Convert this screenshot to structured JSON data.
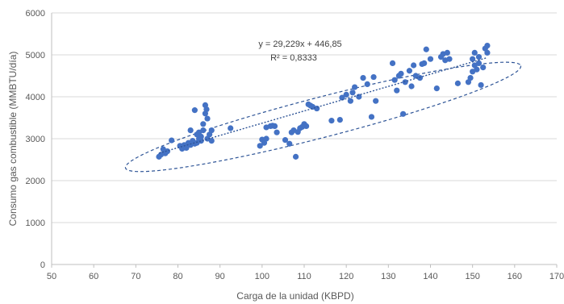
{
  "chart_data": {
    "type": "scatter",
    "title": "",
    "xlabel": "Carga de la unidad (KBPD)",
    "ylabel": "Consumo gas combustible (MMBTU/día)",
    "xlim": [
      50,
      170
    ],
    "ylim": [
      0,
      6000
    ],
    "x_ticks": [
      50,
      60,
      70,
      80,
      90,
      100,
      110,
      120,
      130,
      140,
      150,
      160,
      170
    ],
    "y_ticks": [
      0,
      1000,
      2000,
      3000,
      4000,
      5000,
      6000
    ],
    "x_tick_labels": [
      "50",
      "60",
      "70",
      "80",
      "90",
      "100",
      "110",
      "120",
      "130",
      "140",
      "150",
      "160",
      "170"
    ],
    "y_tick_labels": [
      "0",
      "1000",
      "2000",
      "3000",
      "4000",
      "5000",
      "6000"
    ],
    "grid": "horizontal",
    "marker_color": "#4472c4",
    "trendline": {
      "type": "linear",
      "slope": 29.229,
      "intercept": 446.85,
      "x_range": [
        75.5,
        153.5
      ],
      "equation": "y = 29,229x + 446,85",
      "r_squared": "R² = 0,8333"
    },
    "annotation_ellipse": {
      "center": [
        114.5,
        3520
      ],
      "rx": 48.5,
      "ry": 480,
      "angle_deg": -14.5,
      "style": "dashed"
    },
    "series": [
      {
        "points": [
          [
            75.5,
            2570
          ],
          [
            76.0,
            2620
          ],
          [
            76.5,
            2750
          ],
          [
            77.0,
            2650
          ],
          [
            77.5,
            2700
          ],
          [
            78.5,
            2960
          ],
          [
            80.5,
            2830
          ],
          [
            81.0,
            2760
          ],
          [
            81.5,
            2850
          ],
          [
            82.0,
            2780
          ],
          [
            82.5,
            2900
          ],
          [
            83.0,
            2850
          ],
          [
            83.0,
            3200
          ],
          [
            83.5,
            2950
          ],
          [
            84.0,
            3680
          ],
          [
            84.0,
            2880
          ],
          [
            84.5,
            3100
          ],
          [
            84.5,
            2900
          ],
          [
            85.0,
            3150
          ],
          [
            85.0,
            3000
          ],
          [
            85.5,
            3050
          ],
          [
            85.5,
            2950
          ],
          [
            86.0,
            3200
          ],
          [
            86.0,
            3350
          ],
          [
            86.5,
            3800
          ],
          [
            86.5,
            3600
          ],
          [
            86.8,
            3700
          ],
          [
            87.0,
            3480
          ],
          [
            87.0,
            3000
          ],
          [
            87.5,
            3100
          ],
          [
            88.0,
            3200
          ],
          [
            88.0,
            2950
          ],
          [
            92.5,
            3250
          ],
          [
            99.5,
            2830
          ],
          [
            100.0,
            2980
          ],
          [
            100.5,
            2900
          ],
          [
            101.0,
            3270
          ],
          [
            101.0,
            3000
          ],
          [
            102.0,
            3300
          ],
          [
            102.5,
            3310
          ],
          [
            103.0,
            3300
          ],
          [
            103.5,
            3150
          ],
          [
            105.5,
            2970
          ],
          [
            106.5,
            2880
          ],
          [
            107.0,
            3150
          ],
          [
            107.5,
            3200
          ],
          [
            108.0,
            2570
          ],
          [
            108.5,
            3160
          ],
          [
            109.0,
            3250
          ],
          [
            109.5,
            3280
          ],
          [
            110.0,
            3350
          ],
          [
            110.5,
            3300
          ],
          [
            111.0,
            3820
          ],
          [
            111.5,
            3790
          ],
          [
            112.0,
            3760
          ],
          [
            113.0,
            3720
          ],
          [
            116.5,
            3430
          ],
          [
            118.5,
            3450
          ],
          [
            119.0,
            3980
          ],
          [
            120.0,
            4050
          ],
          [
            121.0,
            3900
          ],
          [
            121.5,
            4100
          ],
          [
            122.0,
            4230
          ],
          [
            123.0,
            4000
          ],
          [
            124.0,
            4450
          ],
          [
            125.0,
            4300
          ],
          [
            126.0,
            3520
          ],
          [
            126.5,
            4470
          ],
          [
            127.0,
            3900
          ],
          [
            131.0,
            4800
          ],
          [
            131.5,
            4400
          ],
          [
            132.0,
            4150
          ],
          [
            132.5,
            4500
          ],
          [
            133.0,
            4550
          ],
          [
            133.5,
            3590
          ],
          [
            134.0,
            4350
          ],
          [
            135.0,
            4620
          ],
          [
            135.5,
            4250
          ],
          [
            136.0,
            4750
          ],
          [
            136.5,
            4500
          ],
          [
            137.5,
            4450
          ],
          [
            138.0,
            4780
          ],
          [
            138.5,
            4800
          ],
          [
            139.0,
            5130
          ],
          [
            140.0,
            4900
          ],
          [
            141.5,
            4200
          ],
          [
            142.5,
            4950
          ],
          [
            143.0,
            5020
          ],
          [
            143.5,
            4870
          ],
          [
            144.0,
            5050
          ],
          [
            144.5,
            4900
          ],
          [
            146.5,
            4320
          ],
          [
            149.0,
            4350
          ],
          [
            149.5,
            4450
          ],
          [
            150.0,
            4600
          ],
          [
            150.0,
            4900
          ],
          [
            150.5,
            5050
          ],
          [
            150.5,
            4750
          ],
          [
            151.0,
            4650
          ],
          [
            151.5,
            4800
          ],
          [
            151.5,
            4950
          ],
          [
            152.0,
            4280
          ],
          [
            152.5,
            4700
          ],
          [
            153.0,
            5150
          ],
          [
            153.5,
            5220
          ],
          [
            153.5,
            5050
          ]
        ]
      }
    ]
  }
}
